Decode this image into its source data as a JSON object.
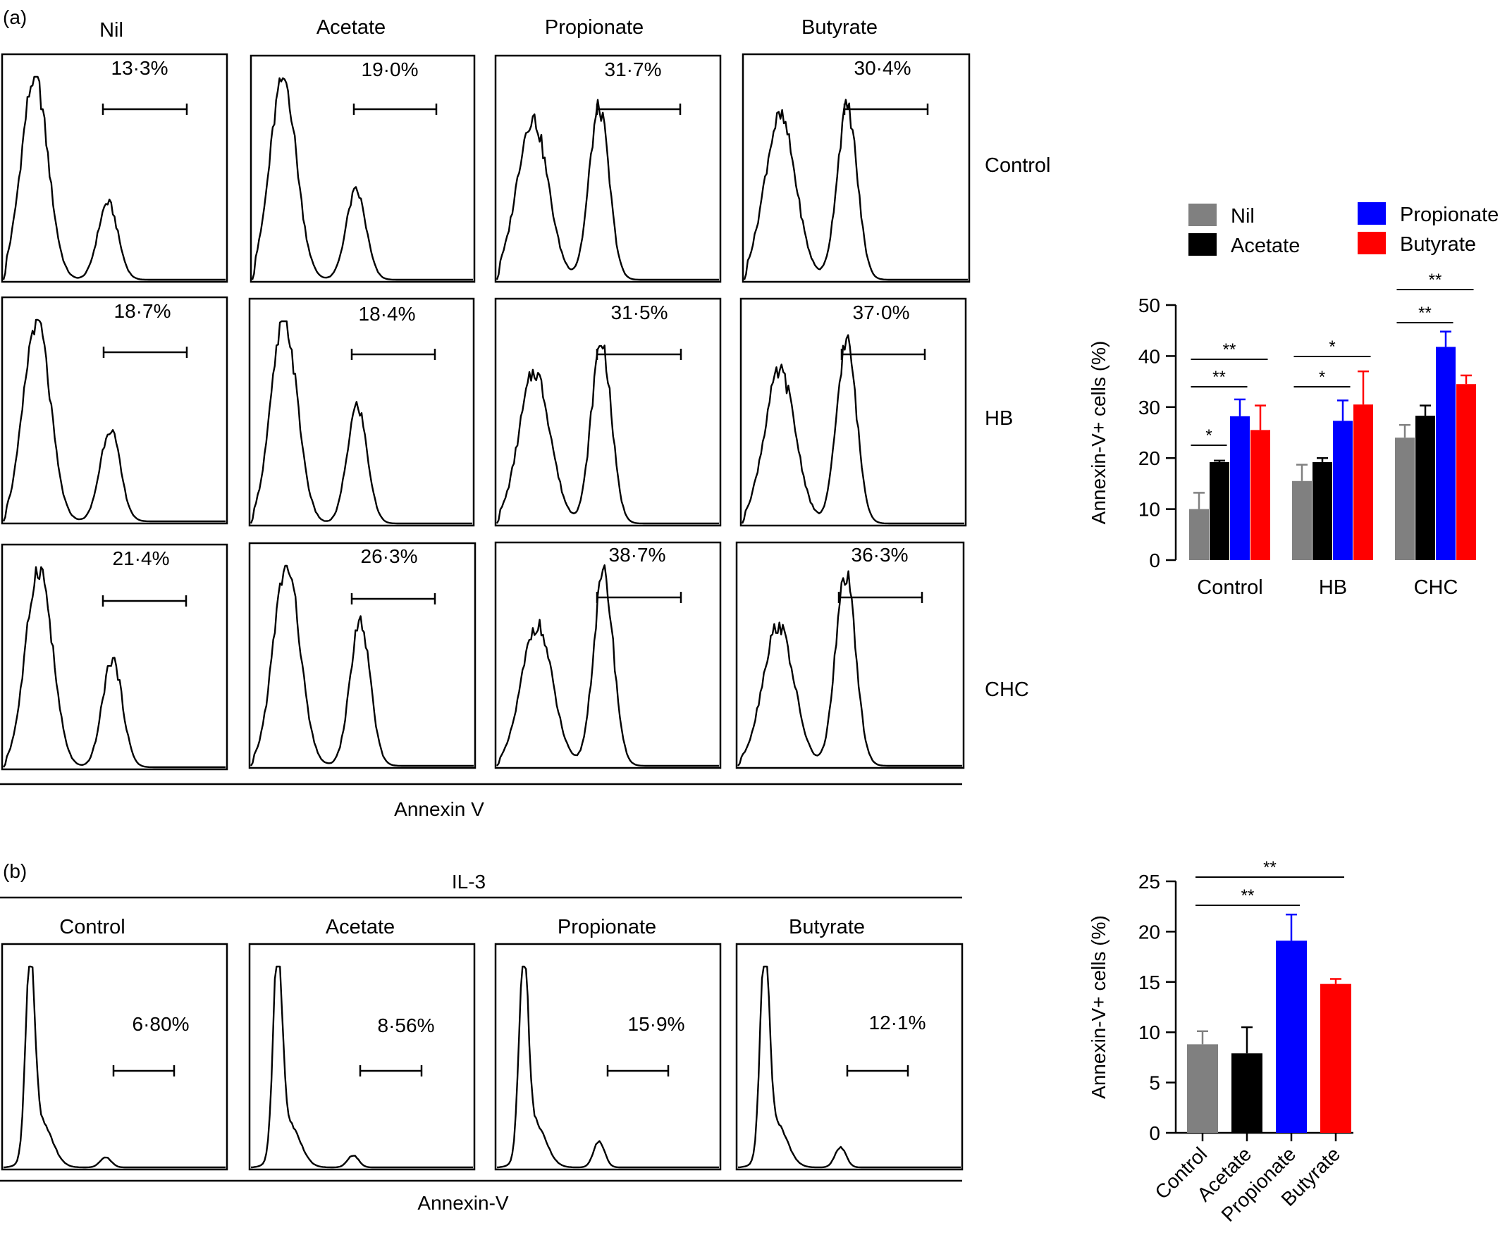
{
  "panel_a": {
    "label": "(a)",
    "conditions": [
      "Nil",
      "Acetate",
      "Propionate",
      "Butyrate"
    ],
    "rows": [
      "Control",
      "HB",
      "CHC"
    ],
    "percentages": [
      [
        "13·3%",
        "19·0%",
        "31·7%",
        "30·4%"
      ],
      [
        "18·7%",
        "18·4%",
        "31·5%",
        "37·0%"
      ],
      [
        "21·4%",
        "26·3%",
        "38·7%",
        "36·3%"
      ]
    ],
    "xlabel": "Annexin V"
  },
  "panel_b": {
    "label": "(b)",
    "group_label": "IL-3",
    "conditions": [
      "Control",
      "Acetate",
      "Propionate",
      "Butyrate"
    ],
    "percentages": [
      "6·80%",
      "8·56%",
      "15·9%",
      "12·1%"
    ],
    "xlabel": "Annexin-V"
  },
  "colors": {
    "nil": "#808080",
    "acetate": "#000000",
    "propionate": "#0000ff",
    "butyrate": "#ff0000"
  },
  "chart_data": [
    {
      "type": "bar",
      "categories": [
        "Control",
        "HB",
        "CHC"
      ],
      "ylabel": "Annexin-V+ cells (%)",
      "ylim": [
        0,
        50
      ],
      "yticks": [
        "0",
        "10",
        "20",
        "30",
        "40",
        "50"
      ],
      "legend_position": "top",
      "series": [
        {
          "name": "Nil",
          "color": "#808080",
          "values": [
            10,
            15.5,
            24
          ],
          "errors": [
            3.2,
            3.2,
            2.5
          ]
        },
        {
          "name": "Acetate",
          "color": "#000000",
          "values": [
            19.2,
            19.2,
            28.3
          ],
          "errors": [
            0.3,
            0.8,
            2
          ]
        },
        {
          "name": "Propionate",
          "color": "#0000ff",
          "values": [
            28.2,
            27.3,
            41.8
          ],
          "errors": [
            3.3,
            4,
            3
          ]
        },
        {
          "name": "Butyrate",
          "color": "#ff0000",
          "values": [
            25.5,
            30.5,
            34.5
          ],
          "errors": [
            4.8,
            6.5,
            1.7
          ]
        }
      ],
      "annotations": [
        {
          "category": 0,
          "from": 0,
          "to": 1,
          "text": "*"
        },
        {
          "category": 0,
          "from": 0,
          "to": 2,
          "text": "**"
        },
        {
          "category": 0,
          "from": 0,
          "to": 3,
          "text": "**"
        },
        {
          "category": 1,
          "from": 0,
          "to": 2,
          "text": "*"
        },
        {
          "category": 1,
          "from": 0,
          "to": 3,
          "text": "*"
        },
        {
          "category": 2,
          "from": 0,
          "to": 2,
          "text": "**"
        },
        {
          "category": 2,
          "from": 0,
          "to": 3,
          "text": "**"
        }
      ]
    },
    {
      "type": "bar",
      "categories": [
        "Control",
        "Acetate",
        "Propionate",
        "Butyrate"
      ],
      "ylabel": "Annexin-V+ cells (%)",
      "ylim": [
        0,
        25
      ],
      "yticks": [
        "0",
        "5",
        "10",
        "15",
        "20",
        "25"
      ],
      "values": [
        8.8,
        7.9,
        19.1,
        14.8
      ],
      "errors": [
        1.3,
        2.6,
        2.6,
        0.5
      ],
      "colors": [
        "#808080",
        "#000000",
        "#0000ff",
        "#ff0000"
      ],
      "annotations": [
        {
          "from": 0,
          "to": 2,
          "text": "**"
        },
        {
          "from": 0,
          "to": 3,
          "text": "**"
        }
      ]
    }
  ]
}
